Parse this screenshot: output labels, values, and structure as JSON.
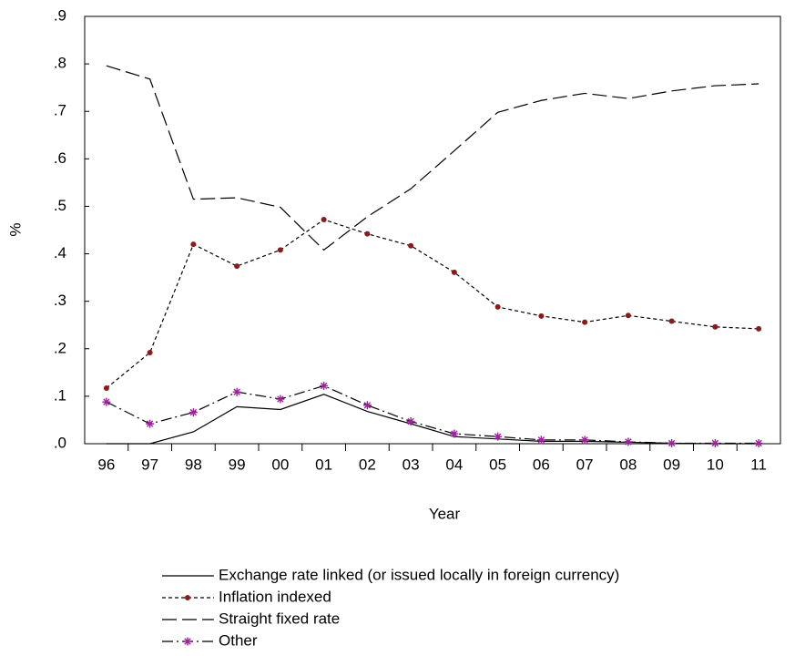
{
  "chart_data": {
    "type": "line",
    "x_label": "Year",
    "y_label": "%",
    "categories": [
      "96",
      "97",
      "98",
      "99",
      "00",
      "01",
      "02",
      "03",
      "04",
      "05",
      "06",
      "07",
      "08",
      "09",
      "10",
      "11"
    ],
    "ylim": [
      0,
      0.9
    ],
    "yticks": [
      {
        "value": 0,
        "label": ".0"
      },
      {
        "value": 0.1,
        "label": ".1"
      },
      {
        "value": 0.2,
        "label": ".2"
      },
      {
        "value": 0.3,
        "label": ".3"
      },
      {
        "value": 0.4,
        "label": ".4"
      },
      {
        "value": 0.5,
        "label": ".5"
      },
      {
        "value": 0.6,
        "label": ".6"
      },
      {
        "value": 0.7,
        "label": ".7"
      },
      {
        "value": 0.8,
        "label": ".8"
      },
      {
        "value": 0.9,
        "label": ".9"
      }
    ],
    "legend": "bottom",
    "series": [
      {
        "name": "Exchange rate linked (or issued locally in foreign currency)",
        "color": "#000000",
        "line_style": "solid",
        "values": [
          0,
          0,
          0.025,
          0.078,
          0.072,
          0.104,
          0.068,
          0.042,
          0.015,
          0.01,
          0.005,
          0.005,
          0.003,
          0.001,
          0,
          0
        ]
      },
      {
        "name": "Inflation indexed",
        "color": "#000000",
        "line_style": "short-dash",
        "marker": "dot",
        "marker_color": "#8b1a1a",
        "values": [
          0.117,
          0.192,
          0.42,
          0.374,
          0.408,
          0.472,
          0.442,
          0.417,
          0.361,
          0.288,
          0.269,
          0.256,
          0.27,
          0.258,
          0.246,
          0.242
        ]
      },
      {
        "name": "Straight fixed rate",
        "color": "#000000",
        "line_style": "long-dash",
        "values": [
          0.796,
          0.768,
          0.515,
          0.518,
          0.498,
          0.408,
          0.478,
          0.537,
          0.617,
          0.698,
          0.723,
          0.738,
          0.727,
          0.743,
          0.754,
          0.758
        ]
      },
      {
        "name": "Other",
        "color": "#000000",
        "line_style": "dash-dot",
        "marker": "star",
        "marker_color": "#a020a0",
        "values": [
          0.088,
          0.042,
          0.066,
          0.109,
          0.094,
          0.122,
          0.081,
          0.047,
          0.021,
          0.015,
          0.008,
          0.008,
          0.004,
          0.001,
          0.001,
          0.001
        ]
      }
    ]
  }
}
